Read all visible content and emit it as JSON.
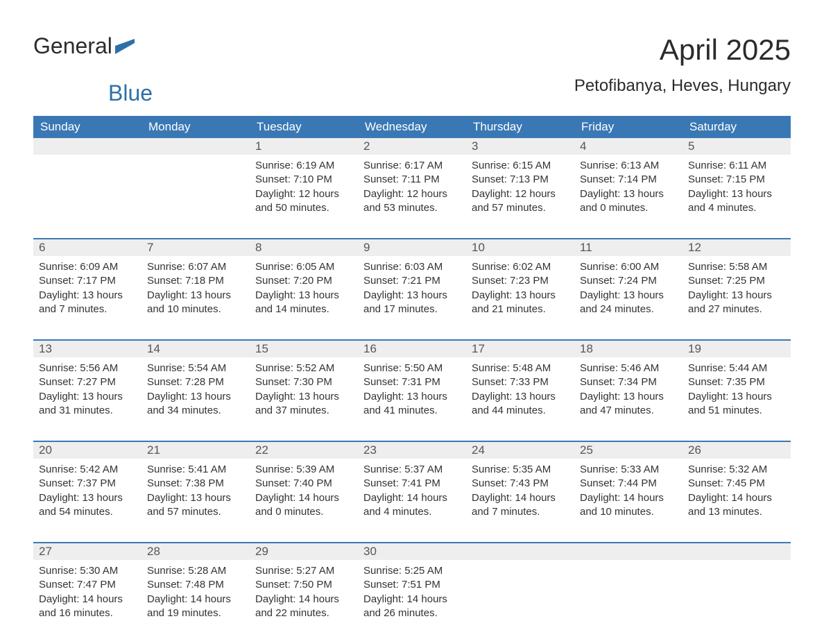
{
  "brand": {
    "word1": "General",
    "word2": "Blue",
    "flag_color": "#2f6fa7"
  },
  "title": "April 2025",
  "location": "Petofibanya, Heves, Hungary",
  "colors": {
    "header_bg": "#3a78b5",
    "header_text": "#ffffff",
    "daynum_bg": "#eeeeee",
    "daynum_text": "#555555",
    "body_text": "#333333",
    "week_border": "#3a78b5",
    "page_bg": "#ffffff"
  },
  "weekdays": [
    "Sunday",
    "Monday",
    "Tuesday",
    "Wednesday",
    "Thursday",
    "Friday",
    "Saturday"
  ],
  "weeks": [
    [
      null,
      null,
      {
        "n": "1",
        "sr": "6:19 AM",
        "ss": "7:10 PM",
        "dl": "12 hours and 50 minutes."
      },
      {
        "n": "2",
        "sr": "6:17 AM",
        "ss": "7:11 PM",
        "dl": "12 hours and 53 minutes."
      },
      {
        "n": "3",
        "sr": "6:15 AM",
        "ss": "7:13 PM",
        "dl": "12 hours and 57 minutes."
      },
      {
        "n": "4",
        "sr": "6:13 AM",
        "ss": "7:14 PM",
        "dl": "13 hours and 0 minutes."
      },
      {
        "n": "5",
        "sr": "6:11 AM",
        "ss": "7:15 PM",
        "dl": "13 hours and 4 minutes."
      }
    ],
    [
      {
        "n": "6",
        "sr": "6:09 AM",
        "ss": "7:17 PM",
        "dl": "13 hours and 7 minutes."
      },
      {
        "n": "7",
        "sr": "6:07 AM",
        "ss": "7:18 PM",
        "dl": "13 hours and 10 minutes."
      },
      {
        "n": "8",
        "sr": "6:05 AM",
        "ss": "7:20 PM",
        "dl": "13 hours and 14 minutes."
      },
      {
        "n": "9",
        "sr": "6:03 AM",
        "ss": "7:21 PM",
        "dl": "13 hours and 17 minutes."
      },
      {
        "n": "10",
        "sr": "6:02 AM",
        "ss": "7:23 PM",
        "dl": "13 hours and 21 minutes."
      },
      {
        "n": "11",
        "sr": "6:00 AM",
        "ss": "7:24 PM",
        "dl": "13 hours and 24 minutes."
      },
      {
        "n": "12",
        "sr": "5:58 AM",
        "ss": "7:25 PM",
        "dl": "13 hours and 27 minutes."
      }
    ],
    [
      {
        "n": "13",
        "sr": "5:56 AM",
        "ss": "7:27 PM",
        "dl": "13 hours and 31 minutes."
      },
      {
        "n": "14",
        "sr": "5:54 AM",
        "ss": "7:28 PM",
        "dl": "13 hours and 34 minutes."
      },
      {
        "n": "15",
        "sr": "5:52 AM",
        "ss": "7:30 PM",
        "dl": "13 hours and 37 minutes."
      },
      {
        "n": "16",
        "sr": "5:50 AM",
        "ss": "7:31 PM",
        "dl": "13 hours and 41 minutes."
      },
      {
        "n": "17",
        "sr": "5:48 AM",
        "ss": "7:33 PM",
        "dl": "13 hours and 44 minutes."
      },
      {
        "n": "18",
        "sr": "5:46 AM",
        "ss": "7:34 PM",
        "dl": "13 hours and 47 minutes."
      },
      {
        "n": "19",
        "sr": "5:44 AM",
        "ss": "7:35 PM",
        "dl": "13 hours and 51 minutes."
      }
    ],
    [
      {
        "n": "20",
        "sr": "5:42 AM",
        "ss": "7:37 PM",
        "dl": "13 hours and 54 minutes."
      },
      {
        "n": "21",
        "sr": "5:41 AM",
        "ss": "7:38 PM",
        "dl": "13 hours and 57 minutes."
      },
      {
        "n": "22",
        "sr": "5:39 AM",
        "ss": "7:40 PM",
        "dl": "14 hours and 0 minutes."
      },
      {
        "n": "23",
        "sr": "5:37 AM",
        "ss": "7:41 PM",
        "dl": "14 hours and 4 minutes."
      },
      {
        "n": "24",
        "sr": "5:35 AM",
        "ss": "7:43 PM",
        "dl": "14 hours and 7 minutes."
      },
      {
        "n": "25",
        "sr": "5:33 AM",
        "ss": "7:44 PM",
        "dl": "14 hours and 10 minutes."
      },
      {
        "n": "26",
        "sr": "5:32 AM",
        "ss": "7:45 PM",
        "dl": "14 hours and 13 minutes."
      }
    ],
    [
      {
        "n": "27",
        "sr": "5:30 AM",
        "ss": "7:47 PM",
        "dl": "14 hours and 16 minutes."
      },
      {
        "n": "28",
        "sr": "5:28 AM",
        "ss": "7:48 PM",
        "dl": "14 hours and 19 minutes."
      },
      {
        "n": "29",
        "sr": "5:27 AM",
        "ss": "7:50 PM",
        "dl": "14 hours and 22 minutes."
      },
      {
        "n": "30",
        "sr": "5:25 AM",
        "ss": "7:51 PM",
        "dl": "14 hours and 26 minutes."
      },
      null,
      null,
      null
    ]
  ],
  "labels": {
    "sunrise": "Sunrise: ",
    "sunset": "Sunset: ",
    "daylight": "Daylight: "
  }
}
